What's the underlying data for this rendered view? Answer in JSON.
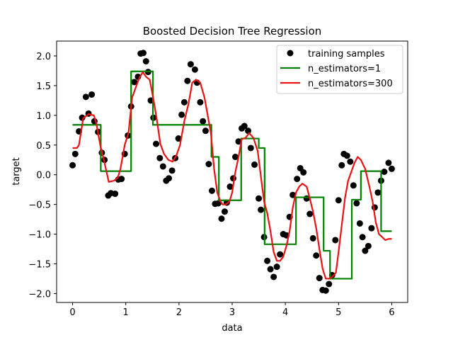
{
  "chart_data": {
    "type": "scatter",
    "title": "Boosted Decision Tree Regression",
    "xlabel": "data",
    "ylabel": "target",
    "xlim": [
      -0.3,
      6.3
    ],
    "ylim": [
      -2.15,
      2.25
    ],
    "x_ticks": [
      0,
      1,
      2,
      3,
      4,
      5,
      6
    ],
    "x_tick_labels": [
      "0",
      "1",
      "2",
      "3",
      "4",
      "5",
      "6"
    ],
    "y_ticks": [
      -2.0,
      -1.5,
      -1.0,
      -0.5,
      0.0,
      0.5,
      1.0,
      1.5,
      2.0
    ],
    "y_tick_labels": [
      "−2.0",
      "−1.5",
      "−1.0",
      "−0.5",
      "0.0",
      "0.5",
      "1.0",
      "1.5",
      "2.0"
    ],
    "grid": false,
    "legend_position": "top-right",
    "series": [
      {
        "name": "training samples",
        "kind": "scatter",
        "color": "#000000",
        "x": [
          0.0,
          0.05,
          0.12,
          0.18,
          0.25,
          0.3,
          0.36,
          0.41,
          0.48,
          0.55,
          0.6,
          0.67,
          0.72,
          0.8,
          0.86,
          0.92,
          0.98,
          1.04,
          1.1,
          1.16,
          1.23,
          1.28,
          1.33,
          1.38,
          1.42,
          1.47,
          1.52,
          1.57,
          1.64,
          1.7,
          1.76,
          1.81,
          1.87,
          1.93,
          1.99,
          2.05,
          2.1,
          2.16,
          2.22,
          2.3,
          2.34,
          2.4,
          2.45,
          2.5,
          2.56,
          2.62,
          2.68,
          2.74,
          2.8,
          2.86,
          2.9,
          2.96,
          3.02,
          3.06,
          3.12,
          3.18,
          3.23,
          3.3,
          3.35,
          3.42,
          3.5,
          3.54,
          3.6,
          3.66,
          3.72,
          3.78,
          3.84,
          3.9,
          3.96,
          4.02,
          4.08,
          4.14,
          4.22,
          4.28,
          4.34,
          4.4,
          4.46,
          4.52,
          4.58,
          4.64,
          4.7,
          4.76,
          4.82,
          4.88,
          4.94,
          5.0,
          5.06,
          5.1,
          5.16,
          5.22,
          5.28,
          5.34,
          5.4,
          5.45,
          5.5,
          5.56,
          5.62,
          5.68,
          5.74,
          5.8,
          5.86,
          5.94,
          6.0
        ],
        "values": [
          0.16,
          0.35,
          0.73,
          0.96,
          1.31,
          1.03,
          1.35,
          0.9,
          0.72,
          0.37,
          0.25,
          -0.35,
          -0.31,
          -0.32,
          -0.08,
          -0.07,
          0.35,
          0.66,
          1.15,
          1.56,
          1.65,
          2.04,
          2.05,
          1.91,
          1.73,
          1.25,
          0.96,
          0.52,
          0.28,
          0.14,
          -0.1,
          -0.06,
          0.07,
          0.28,
          0.61,
          1.01,
          1.22,
          1.58,
          1.86,
          1.77,
          1.55,
          1.22,
          0.9,
          0.74,
          0.18,
          -0.27,
          -0.49,
          -0.48,
          -0.74,
          -0.62,
          -0.47,
          -0.2,
          -0.06,
          0.3,
          0.56,
          0.78,
          0.82,
          0.74,
          0.45,
          0.17,
          -0.4,
          -0.59,
          -1.05,
          -1.45,
          -1.59,
          -1.72,
          -1.55,
          -1.34,
          -1.0,
          -1.02,
          -0.71,
          -0.34,
          -0.07,
          0.11,
          0.04,
          -0.4,
          -0.66,
          -1.07,
          -1.36,
          -1.74,
          -1.94,
          -1.95,
          -1.84,
          -1.69,
          -1.1,
          -0.43,
          0.16,
          0.35,
          0.32,
          0.22,
          -0.18,
          -0.48,
          -0.82,
          -1.05,
          -1.28,
          -1.2,
          -0.9,
          -0.55,
          -0.3,
          -0.1,
          0.05,
          0.2,
          0.1
        ]
      },
      {
        "name": "n_estimators=1",
        "kind": "step",
        "color": "#008000",
        "x": [
          0.0,
          0.53,
          0.53,
          1.1,
          1.1,
          1.51,
          1.51,
          2.61,
          2.61,
          2.75,
          2.75,
          3.17,
          3.17,
          3.5,
          3.5,
          3.61,
          3.61,
          4.2,
          4.2,
          4.72,
          4.72,
          4.84,
          4.84,
          5.25,
          5.25,
          5.42,
          5.42,
          5.8,
          5.8,
          6.0
        ],
        "values": [
          0.84,
          0.84,
          0.06,
          0.06,
          1.74,
          1.74,
          0.84,
          0.84,
          0.3,
          0.3,
          -0.43,
          -0.43,
          0.61,
          0.61,
          0.45,
          0.45,
          -1.17,
          -1.17,
          -0.38,
          -0.38,
          -1.28,
          -1.28,
          -1.75,
          -1.75,
          -0.42,
          -0.42,
          0.06,
          0.06,
          -0.95,
          -0.95
        ]
      },
      {
        "name": "n_estimators=300",
        "kind": "line",
        "color": "#ee1111",
        "x": [
          0.0,
          0.08,
          0.12,
          0.2,
          0.3,
          0.4,
          0.45,
          0.52,
          0.6,
          0.68,
          0.78,
          0.85,
          0.9,
          0.98,
          1.05,
          1.12,
          1.18,
          1.25,
          1.32,
          1.38,
          1.45,
          1.52,
          1.58,
          1.65,
          1.72,
          1.8,
          1.88,
          1.95,
          2.02,
          2.1,
          2.18,
          2.25,
          2.32,
          2.4,
          2.48,
          2.55,
          2.6,
          2.66,
          2.72,
          2.78,
          2.82,
          2.88,
          2.95,
          3.0,
          3.05,
          3.12,
          3.18,
          3.25,
          3.32,
          3.4,
          3.48,
          3.55,
          3.6,
          3.66,
          3.72,
          3.78,
          3.84,
          3.9,
          3.96,
          4.02,
          4.08,
          4.14,
          4.2,
          4.26,
          4.32,
          4.4,
          4.46,
          4.52,
          4.58,
          4.64,
          4.7,
          4.76,
          4.82,
          4.88,
          4.95,
          5.0,
          5.06,
          5.12,
          5.18,
          5.24,
          5.3,
          5.36,
          5.42,
          5.5,
          5.58,
          5.64,
          5.7,
          5.76,
          5.82,
          5.88,
          5.94,
          6.0
        ],
        "values": [
          0.45,
          0.45,
          0.5,
          0.95,
          1.02,
          1.0,
          0.85,
          0.5,
          0.2,
          -0.12,
          -0.1,
          -0.05,
          0.1,
          0.5,
          0.7,
          1.3,
          1.45,
          1.62,
          1.73,
          1.65,
          1.6,
          1.27,
          0.95,
          0.52,
          0.35,
          0.25,
          0.22,
          0.32,
          0.5,
          0.9,
          1.2,
          1.55,
          1.6,
          1.55,
          1.3,
          0.95,
          0.7,
          0.1,
          -0.3,
          -0.45,
          -0.5,
          -0.5,
          -0.45,
          -0.3,
          0.0,
          0.3,
          0.6,
          0.62,
          0.7,
          0.62,
          0.4,
          -0.1,
          -0.45,
          -0.65,
          -0.95,
          -1.3,
          -1.45,
          -1.45,
          -1.38,
          -1.2,
          -0.95,
          -0.55,
          -0.3,
          -0.2,
          -0.15,
          -0.2,
          -0.4,
          -0.62,
          -0.9,
          -1.25,
          -1.58,
          -1.75,
          -1.75,
          -1.72,
          -1.65,
          -1.3,
          -0.85,
          -0.4,
          -0.1,
          0.05,
          0.2,
          0.3,
          0.25,
          0.1,
          -0.2,
          -0.45,
          -0.8,
          -1.0,
          -1.05,
          -1.1,
          -1.08,
          -1.08
        ]
      }
    ]
  }
}
